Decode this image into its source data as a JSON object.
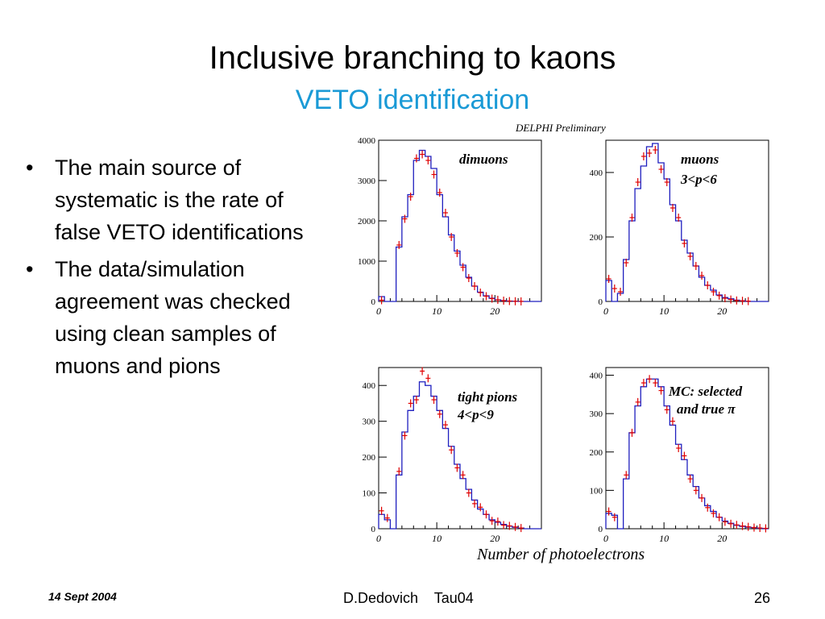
{
  "slide": {
    "title": "Inclusive branching to kaons",
    "subtitle": "VETO identification",
    "bullets": [
      "The main source of systematic is the rate of false VETO identifications",
      "The data/simulation agreement was checked using clean samples of muons and pions"
    ],
    "bullet_symbol": "•"
  },
  "figure": {
    "header": "DELPHI Preliminary",
    "xlabel": "Number of photoelectrons"
  },
  "chart_data": [
    {
      "type": "bar",
      "title": "dimuons",
      "xlim": [
        0,
        28
      ],
      "ylim": [
        0,
        4000
      ],
      "xticks": [
        0,
        10,
        20
      ],
      "yticks": [
        0,
        1000,
        2000,
        3000,
        4000
      ],
      "series": [
        {
          "values": [
            120,
            0,
            0,
            1350,
            2100,
            2650,
            3500,
            3750,
            3600,
            3300,
            2650,
            2100,
            1650,
            1250,
            900,
            600,
            380,
            230,
            140,
            80,
            40,
            20,
            10,
            5,
            0,
            0,
            0,
            0
          ]
        },
        {
          "values": [
            30,
            0,
            0,
            1400,
            2050,
            2600,
            3550,
            3650,
            3500,
            3150,
            2700,
            2200,
            1600,
            1200,
            850,
            580,
            380,
            220,
            130,
            70,
            40,
            20,
            10,
            5,
            2,
            0,
            0,
            0
          ]
        }
      ]
    },
    {
      "type": "bar",
      "title": "muons 3<p<6",
      "xlim": [
        0,
        28
      ],
      "ylim": [
        0,
        500
      ],
      "xticks": [
        0,
        10,
        20
      ],
      "yticks": [
        0,
        200,
        400
      ],
      "series": [
        {
          "values": [
            65,
            0,
            25,
            130,
            250,
            350,
            420,
            480,
            490,
            430,
            380,
            300,
            250,
            190,
            150,
            110,
            75,
            50,
            35,
            20,
            12,
            8,
            4,
            2,
            0,
            0,
            0,
            0
          ]
        },
        {
          "values": [
            70,
            40,
            30,
            120,
            260,
            370,
            450,
            460,
            470,
            410,
            370,
            290,
            260,
            180,
            140,
            110,
            80,
            50,
            30,
            18,
            10,
            6,
            3,
            2,
            1,
            0,
            0,
            0
          ]
        }
      ]
    },
    {
      "type": "bar",
      "title": "tight pions 4<p<9",
      "xlim": [
        0,
        28
      ],
      "ylim": [
        0,
        450
      ],
      "xticks": [
        0,
        10,
        20
      ],
      "yticks": [
        0,
        100,
        200,
        300,
        400
      ],
      "series": [
        {
          "values": [
            40,
            25,
            0,
            150,
            270,
            330,
            370,
            410,
            400,
            370,
            330,
            280,
            230,
            180,
            140,
            110,
            80,
            55,
            40,
            25,
            18,
            12,
            7,
            4,
            2,
            0,
            0,
            0
          ]
        },
        {
          "values": [
            50,
            30,
            0,
            160,
            260,
            350,
            360,
            440,
            420,
            360,
            320,
            290,
            220,
            170,
            150,
            100,
            70,
            60,
            40,
            22,
            20,
            10,
            8,
            5,
            2,
            0,
            0,
            0
          ]
        }
      ]
    },
    {
      "type": "bar",
      "title": "MC: selected and true π",
      "xlim": [
        0,
        28
      ],
      "ylim": [
        0,
        420
      ],
      "xticks": [
        0,
        10,
        20
      ],
      "yticks": [
        0,
        100,
        200,
        300,
        400
      ],
      "series": [
        {
          "values": [
            40,
            35,
            0,
            130,
            250,
            320,
            370,
            390,
            390,
            370,
            320,
            270,
            220,
            180,
            140,
            110,
            80,
            60,
            45,
            30,
            20,
            14,
            9,
            6,
            4,
            3,
            1,
            0
          ]
        },
        {
          "values": [
            45,
            30,
            0,
            140,
            250,
            330,
            380,
            390,
            380,
            360,
            310,
            280,
            210,
            190,
            130,
            100,
            80,
            55,
            40,
            30,
            18,
            13,
            10,
            7,
            5,
            3,
            2,
            1
          ]
        }
      ]
    }
  ],
  "footer": {
    "date": "14 Sept 2004",
    "author": "D.Dedovich",
    "conference": "Tau04",
    "page": "26"
  },
  "colors": {
    "subtitle": "#1a9ad6",
    "simulation": "#1f1fbf",
    "data": "#e00000"
  }
}
